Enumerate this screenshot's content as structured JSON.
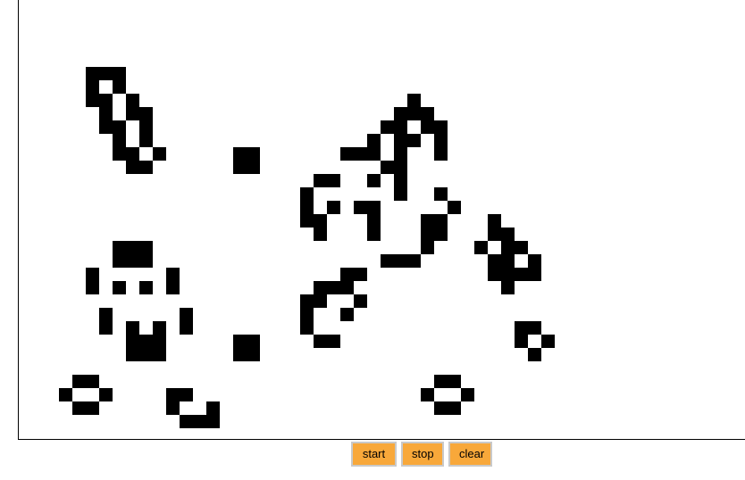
{
  "controls": {
    "start_label": "start",
    "stop_label": "stop",
    "clear_label": "clear"
  },
  "board": {
    "cell_color": "#000000",
    "background_color": "#ffffff",
    "live_cells": [
      [
        6,
        6
      ],
      [
        7,
        6
      ],
      [
        8,
        6
      ],
      [
        6,
        7
      ],
      [
        8,
        7
      ],
      [
        6,
        8
      ],
      [
        7,
        8
      ],
      [
        9,
        8
      ],
      [
        7,
        9
      ],
      [
        9,
        9
      ],
      [
        10,
        9
      ],
      [
        7,
        10
      ],
      [
        8,
        10
      ],
      [
        10,
        10
      ],
      [
        8,
        11
      ],
      [
        10,
        11
      ],
      [
        8,
        12
      ],
      [
        9,
        12
      ],
      [
        11,
        12
      ],
      [
        9,
        13
      ],
      [
        10,
        13
      ],
      [
        17,
        12
      ],
      [
        18,
        12
      ],
      [
        17,
        13
      ],
      [
        18,
        13
      ],
      [
        30,
        8
      ],
      [
        29,
        9
      ],
      [
        30,
        9
      ],
      [
        31,
        9
      ],
      [
        28,
        10
      ],
      [
        29,
        10
      ],
      [
        31,
        10
      ],
      [
        32,
        10
      ],
      [
        27,
        11
      ],
      [
        29,
        11
      ],
      [
        30,
        11
      ],
      [
        32,
        11
      ],
      [
        25,
        12
      ],
      [
        26,
        12
      ],
      [
        27,
        12
      ],
      [
        29,
        12
      ],
      [
        32,
        12
      ],
      [
        28,
        13
      ],
      [
        29,
        13
      ],
      [
        23,
        14
      ],
      [
        24,
        14
      ],
      [
        27,
        14
      ],
      [
        29,
        14
      ],
      [
        22,
        15
      ],
      [
        29,
        15
      ],
      [
        32,
        15
      ],
      [
        22,
        16
      ],
      [
        24,
        16
      ],
      [
        26,
        16
      ],
      [
        27,
        16
      ],
      [
        33,
        16
      ],
      [
        22,
        17
      ],
      [
        23,
        17
      ],
      [
        27,
        17
      ],
      [
        31,
        17
      ],
      [
        32,
        17
      ],
      [
        23,
        18
      ],
      [
        27,
        18
      ],
      [
        31,
        18
      ],
      [
        32,
        18
      ],
      [
        31,
        19
      ],
      [
        30,
        20
      ],
      [
        28,
        20
      ],
      [
        29,
        20
      ],
      [
        36,
        17
      ],
      [
        36,
        18
      ],
      [
        37,
        18
      ],
      [
        35,
        19
      ],
      [
        37,
        19
      ],
      [
        38,
        19
      ],
      [
        36,
        20
      ],
      [
        37,
        20
      ],
      [
        39,
        20
      ],
      [
        36,
        21
      ],
      [
        37,
        21
      ],
      [
        38,
        21
      ],
      [
        39,
        21
      ],
      [
        36,
        20
      ],
      [
        37,
        22
      ],
      [
        8,
        19
      ],
      [
        9,
        19
      ],
      [
        10,
        19
      ],
      [
        8,
        20
      ],
      [
        9,
        20
      ],
      [
        10,
        20
      ],
      [
        6,
        21
      ],
      [
        12,
        21
      ],
      [
        6,
        22
      ],
      [
        8,
        22
      ],
      [
        10,
        22
      ],
      [
        12,
        22
      ],
      [
        7,
        24
      ],
      [
        13,
        24
      ],
      [
        7,
        25
      ],
      [
        9,
        25
      ],
      [
        11,
        25
      ],
      [
        13,
        25
      ],
      [
        9,
        26
      ],
      [
        10,
        26
      ],
      [
        11,
        26
      ],
      [
        9,
        27
      ],
      [
        10,
        27
      ],
      [
        11,
        27
      ],
      [
        25,
        21
      ],
      [
        26,
        21
      ],
      [
        23,
        22
      ],
      [
        24,
        22
      ],
      [
        25,
        22
      ],
      [
        22,
        23
      ],
      [
        23,
        23
      ],
      [
        26,
        23
      ],
      [
        22,
        24
      ],
      [
        25,
        24
      ],
      [
        22,
        25
      ],
      [
        23,
        26
      ],
      [
        24,
        26
      ],
      [
        17,
        26
      ],
      [
        18,
        26
      ],
      [
        17,
        27
      ],
      [
        18,
        27
      ],
      [
        38,
        25
      ],
      [
        39,
        25
      ],
      [
        38,
        26
      ],
      [
        40,
        26
      ],
      [
        39,
        27
      ],
      [
        5,
        29
      ],
      [
        6,
        29
      ],
      [
        4,
        30
      ],
      [
        7,
        30
      ],
      [
        5,
        31
      ],
      [
        6,
        31
      ],
      [
        12,
        30
      ],
      [
        13,
        30
      ],
      [
        12,
        31
      ],
      [
        15,
        31
      ],
      [
        13,
        32
      ],
      [
        14,
        32
      ],
      [
        15,
        32
      ],
      [
        32,
        29
      ],
      [
        33,
        29
      ],
      [
        31,
        30
      ],
      [
        34,
        30
      ],
      [
        32,
        31
      ],
      [
        33,
        31
      ]
    ]
  }
}
